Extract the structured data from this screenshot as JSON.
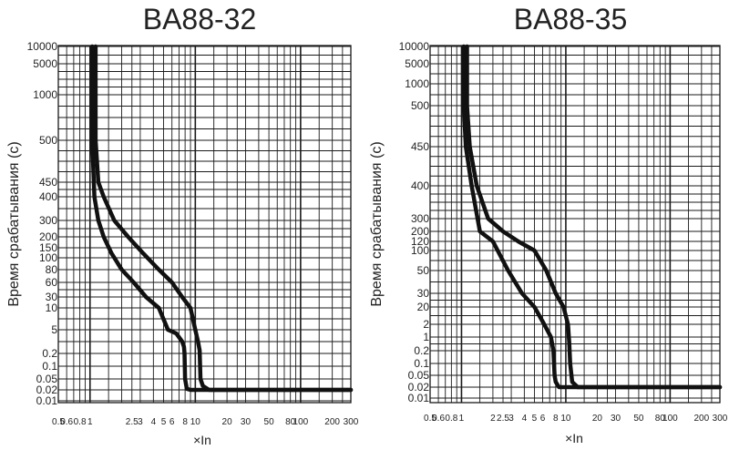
{
  "colors": {
    "grid": "#1a1a1a",
    "curve": "#111111",
    "text": "#222222",
    "background": "#ffffff"
  },
  "chart_data": [
    {
      "type": "line",
      "title": "BA88-32",
      "ylabel": "Время срабатывания (с)",
      "xlabel": "×In",
      "x_ticks": [
        "0.5",
        "0.6",
        "0.8",
        "1",
        "2.5",
        "3",
        "4",
        "5",
        "6",
        "8",
        "10",
        "20",
        "30",
        "50",
        "80",
        "100",
        "200",
        "300"
      ],
      "y_ticks": [
        "10000",
        "5000",
        "1000",
        "500",
        "450",
        "400",
        "300",
        "200",
        "150",
        "100",
        "80",
        "60",
        "30",
        "10",
        "5",
        "0.2",
        "0.1",
        "0.05",
        "0.02",
        "0.01"
      ],
      "series": [
        {
          "name": "lower",
          "x": [
            1.05,
            1.05,
            1.1,
            1.2,
            1.35,
            1.6,
            2.0,
            2.6,
            3.4,
            4.5,
            5.5,
            6.6,
            7.5,
            7.8,
            7.9,
            8.0,
            8.3,
            9.0,
            10,
            20,
            50,
            100,
            300
          ],
          "t": [
            10000,
            500,
            400,
            300,
            200,
            120,
            80,
            60,
            30,
            10,
            5,
            3,
            1,
            0.5,
            0.2,
            0.05,
            0.022,
            0.02,
            0.02,
            0.02,
            0.02,
            0.02,
            0.02
          ]
        },
        {
          "name": "upper",
          "x": [
            1.13,
            1.13,
            1.2,
            1.35,
            1.7,
            2.3,
            3.2,
            4.5,
            6.0,
            7.5,
            9.0,
            10.0,
            10.6,
            11.0,
            11.2,
            11.8,
            13.5,
            16,
            20,
            50,
            100,
            300
          ],
          "t": [
            10000,
            500,
            450,
            400,
            300,
            200,
            120,
            80,
            60,
            30,
            10,
            5,
            1,
            0.3,
            0.05,
            0.028,
            0.02,
            0.02,
            0.02,
            0.02,
            0.02,
            0.02
          ]
        }
      ]
    },
    {
      "type": "line",
      "title": "BA88-35",
      "ylabel": "Время срабатывания (с)",
      "xlabel": "×In",
      "x_ticks": [
        "0.5",
        "0.6",
        "0.8",
        "1",
        "2",
        "2.5",
        "3",
        "4",
        "5",
        "6",
        "8",
        "10",
        "20",
        "30",
        "50",
        "80",
        "100",
        "200",
        "300"
      ],
      "y_ticks": [
        "10000",
        "5000",
        "1000",
        "500",
        "450",
        "400",
        "300",
        "200",
        "120",
        "100",
        "50",
        "30",
        "20",
        "2",
        "1",
        "0.2",
        "0.1",
        "0.05",
        "0.02",
        "0.01"
      ],
      "series": [
        {
          "name": "lower",
          "x": [
            1.05,
            1.05,
            1.1,
            1.25,
            1.5,
            2.0,
            2.8,
            3.8,
            5.0,
            6.2,
            7.2,
            7.6,
            7.8,
            8.0,
            8.6,
            10,
            20,
            50,
            100,
            300
          ],
          "t": [
            10000,
            500,
            450,
            400,
            200,
            120,
            50,
            30,
            20,
            2,
            1,
            0.2,
            0.05,
            0.03,
            0.02,
            0.02,
            0.02,
            0.02,
            0.02,
            0.02
          ]
        },
        {
          "name": "upper",
          "x": [
            1.13,
            1.13,
            1.2,
            1.4,
            1.8,
            2.5,
            3.5,
            5.0,
            6.5,
            8.0,
            9.5,
            10.5,
            10.8,
            11.0,
            11.5,
            13,
            16,
            20,
            50,
            100,
            300
          ],
          "t": [
            10000,
            500,
            450,
            400,
            300,
            200,
            120,
            100,
            50,
            30,
            20,
            2,
            0.5,
            0.1,
            0.03,
            0.02,
            0.02,
            0.02,
            0.02,
            0.02,
            0.02
          ]
        }
      ]
    }
  ]
}
